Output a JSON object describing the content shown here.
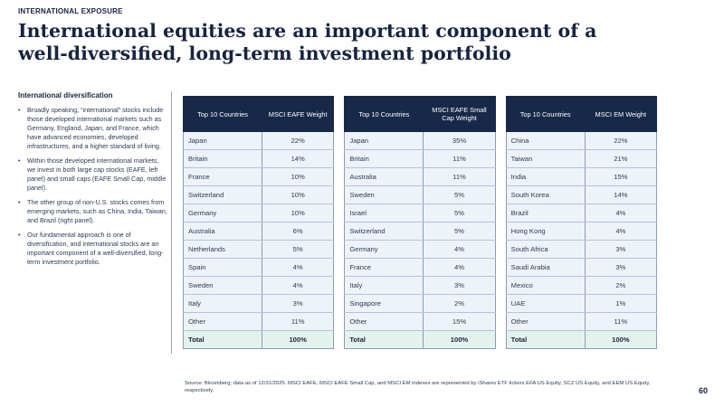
{
  "header": {
    "eyebrow": "INTERNATIONAL EXPOSURE",
    "title": "International equities are an important component of a well-diversified, long-term investment portfolio"
  },
  "sidebar": {
    "heading": "International diversification",
    "bullets": [
      "Broadly speaking, “international” stocks include those developed international markets such as Germany, England, Japan, and France, which have advanced economies, developed infrastructures, and a higher standard of living.",
      "Within those developed international markets, we invest in both large cap stocks (EAFE, left panel) and small caps (EAFE Small Cap, middle panel).",
      "The other group of non-U.S. stocks comes from emerging markets, such as China, India, Taiwan, and Brazil (right panel).",
      "Our fundamental approach is one of diversification, and international stocks are an important component of a well-diversified, long-term investment portfolio."
    ]
  },
  "tables": [
    {
      "headers": [
        "Top 10 Countries",
        "MSCI EAFE Weight"
      ],
      "rows": [
        [
          "Japan",
          "22%"
        ],
        [
          "Britain",
          "14%"
        ],
        [
          "France",
          "10%"
        ],
        [
          "Switzerland",
          "10%"
        ],
        [
          "Germany",
          "10%"
        ],
        [
          "Australia",
          "6%"
        ],
        [
          "Netherlands",
          "5%"
        ],
        [
          "Spain",
          "4%"
        ],
        [
          "Sweden",
          "4%"
        ],
        [
          "Italy",
          "3%"
        ],
        [
          "Other",
          "11%"
        ]
      ],
      "total": [
        "Total",
        "100%"
      ]
    },
    {
      "headers": [
        "Top 10 Countries",
        "MSCI EAFE Small Cap Weight"
      ],
      "rows": [
        [
          "Japan",
          "35%"
        ],
        [
          "Britain",
          "11%"
        ],
        [
          "Australia",
          "11%"
        ],
        [
          "Sweden",
          "5%"
        ],
        [
          "Israel",
          "5%"
        ],
        [
          "Switzerland",
          "5%"
        ],
        [
          "Germany",
          "4%"
        ],
        [
          "France",
          "4%"
        ],
        [
          "Italy",
          "3%"
        ],
        [
          "Singapore",
          "2%"
        ],
        [
          "Other",
          "15%"
        ]
      ],
      "total": [
        "Total",
        "100%"
      ]
    },
    {
      "headers": [
        "Top 10 Countries",
        "MSCI EM  Weight"
      ],
      "rows": [
        [
          "China",
          "22%"
        ],
        [
          "Taiwan",
          "21%"
        ],
        [
          "India",
          "15%"
        ],
        [
          "South Korea",
          "14%"
        ],
        [
          "Brazil",
          "4%"
        ],
        [
          "Hong Kong",
          "4%"
        ],
        [
          "South Africa",
          "3%"
        ],
        [
          "Saudi Arabia",
          "3%"
        ],
        [
          "Mexico",
          "2%"
        ],
        [
          "UAE",
          "1%"
        ],
        [
          "Other",
          "11%"
        ]
      ],
      "total": [
        "Total",
        "100%"
      ]
    }
  ],
  "footer": {
    "source": "Source: Bloomberg; data as of 12/31/2025. MSCI EAFE, MSCI EAFE Small Cap, and MSCI EM indexes are represented by iShares ETF tickers EFA US Equity, SCZ US Equity, and EEM US Equity, respectively.",
    "page_number": "60"
  }
}
